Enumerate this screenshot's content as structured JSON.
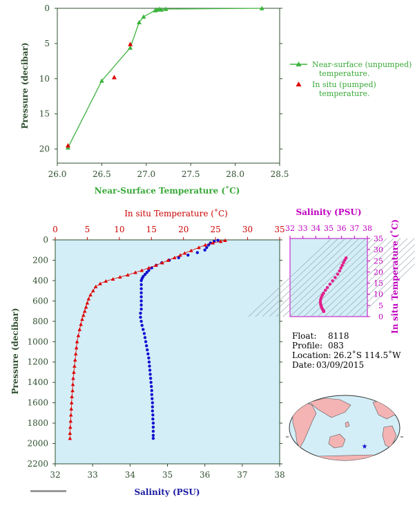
{
  "chart_data": [
    {
      "type": "line",
      "xlabel": "Near-Surface Temperature (˚C)",
      "ylabel": "Pressure (decibar)",
      "xlim": [
        26.0,
        28.5
      ],
      "ylim": [
        0,
        22
      ],
      "x_ticks": [
        "26.0",
        "26.5",
        "27.0",
        "27.5",
        "28.0",
        "28.5"
      ],
      "y_ticks": [
        "0",
        "5",
        "10",
        "15",
        "20"
      ],
      "legend": {
        "position": "right",
        "entries": [
          "Near-surface (unpumped) temperature.",
          "In situ (pumped) temperature."
        ]
      },
      "series": [
        {
          "name": "Near-surface (unpumped) temperature.",
          "color": "#3cb43c",
          "marker": "triangle",
          "points": [
            [
              28.3,
              0.0
            ],
            [
              27.22,
              0.1
            ],
            [
              27.17,
              0.2
            ],
            [
              27.15,
              0.1
            ],
            [
              27.12,
              0.2
            ],
            [
              27.1,
              0.3
            ],
            [
              26.97,
              1.2
            ],
            [
              26.92,
              2.0
            ],
            [
              26.82,
              5.6
            ],
            [
              26.5,
              10.3
            ],
            [
              26.12,
              19.8
            ]
          ]
        },
        {
          "name": "In situ (pumped) temperature.",
          "color": "#dd0000",
          "marker": "triangle",
          "points": [
            [
              26.82,
              5.1
            ],
            [
              26.64,
              9.8
            ],
            [
              26.12,
              19.5
            ]
          ]
        }
      ]
    },
    {
      "type": "scatter",
      "ylabel": "Pressure (decibar)",
      "top_xlabel": "In situ Temperature (˚C)",
      "bottom_xlabel": "Salinity (PSU)",
      "temperature_xlim": [
        0,
        35
      ],
      "salinity_xlim": [
        32,
        38
      ],
      "ylim": [
        0,
        2200
      ],
      "y_reversed": true,
      "temperature_ticks": [
        "0",
        "5",
        "10",
        "15",
        "20",
        "25",
        "30",
        "35"
      ],
      "salinity_ticks": [
        "32",
        "33",
        "34",
        "35",
        "36",
        "37",
        "38"
      ],
      "y_ticks": [
        "0",
        "200",
        "400",
        "600",
        "800",
        "1000",
        "1200",
        "1400",
        "1600",
        "1800",
        "2000",
        "2200"
      ],
      "background": "#d4eef8",
      "series": [
        {
          "name": "In situ Temperature (˚C)",
          "color": "#dd0000",
          "marker": "triangle",
          "points": [
            [
              26.5,
              5
            ],
            [
              25.8,
              15
            ],
            [
              24.6,
              30
            ],
            [
              23.4,
              50
            ],
            [
              22.4,
              75
            ],
            [
              21.2,
              105
            ],
            [
              20.2,
              130
            ],
            [
              19.5,
              150
            ],
            [
              18.6,
              175
            ],
            [
              17.6,
              200
            ],
            [
              16.7,
              225
            ],
            [
              15.7,
              250
            ],
            [
              14.6,
              275
            ],
            [
              13.5,
              300
            ],
            [
              12.5,
              320
            ],
            [
              11.3,
              345
            ],
            [
              10.1,
              365
            ],
            [
              9.0,
              385
            ],
            [
              7.9,
              405
            ],
            [
              7.0,
              430
            ],
            [
              6.3,
              460
            ],
            [
              5.9,
              500
            ],
            [
              5.5,
              540
            ],
            [
              5.2,
              580
            ],
            [
              5.0,
              620
            ],
            [
              4.8,
              660
            ],
            [
              4.6,
              700
            ],
            [
              4.4,
              740
            ],
            [
              4.2,
              780
            ],
            [
              4.0,
              830
            ],
            [
              3.8,
              880
            ],
            [
              3.6,
              940
            ],
            [
              3.4,
              1000
            ],
            [
              3.3,
              1060
            ],
            [
              3.2,
              1120
            ],
            [
              3.1,
              1180
            ],
            [
              3.0,
              1240
            ],
            [
              2.9,
              1300
            ],
            [
              2.8,
              1360
            ],
            [
              2.75,
              1420
            ],
            [
              2.7,
              1480
            ],
            [
              2.6,
              1540
            ],
            [
              2.55,
              1600
            ],
            [
              2.5,
              1660
            ],
            [
              2.45,
              1720
            ],
            [
              2.4,
              1780
            ],
            [
              2.35,
              1840
            ],
            [
              2.3,
              1900
            ],
            [
              2.3,
              1950
            ]
          ]
        },
        {
          "name": "Salinity (PSU)",
          "color": "#1010d0",
          "marker": "circle",
          "points": [
            [
              36.35,
              5
            ],
            [
              36.25,
              15
            ],
            [
              36.15,
              30
            ],
            [
              36.1,
              50
            ],
            [
              36.05,
              75
            ],
            [
              36.0,
              100
            ],
            [
              35.8,
              125
            ],
            [
              35.55,
              150
            ],
            [
              35.3,
              175
            ],
            [
              35.05,
              200
            ],
            [
              34.85,
              225
            ],
            [
              34.7,
              250
            ],
            [
              34.58,
              275
            ],
            [
              34.5,
              300
            ],
            [
              34.45,
              320
            ],
            [
              34.4,
              340
            ],
            [
              34.35,
              360
            ],
            [
              34.32,
              380
            ],
            [
              34.3,
              400
            ],
            [
              34.3,
              440
            ],
            [
              34.3,
              480
            ],
            [
              34.3,
              520
            ],
            [
              34.3,
              560
            ],
            [
              34.3,
              600
            ],
            [
              34.3,
              640
            ],
            [
              34.3,
              680
            ],
            [
              34.28,
              720
            ],
            [
              34.28,
              760
            ],
            [
              34.3,
              800
            ],
            [
              34.32,
              840
            ],
            [
              34.35,
              880
            ],
            [
              34.38,
              920
            ],
            [
              34.4,
              960
            ],
            [
              34.42,
              1000
            ],
            [
              34.44,
              1040
            ],
            [
              34.46,
              1080
            ],
            [
              34.48,
              1120
            ],
            [
              34.5,
              1160
            ],
            [
              34.51,
              1200
            ],
            [
              34.52,
              1240
            ],
            [
              34.53,
              1280
            ],
            [
              34.54,
              1320
            ],
            [
              34.55,
              1360
            ],
            [
              34.56,
              1400
            ],
            [
              34.57,
              1440
            ],
            [
              34.58,
              1480
            ],
            [
              34.58,
              1520
            ],
            [
              34.59,
              1560
            ],
            [
              34.6,
              1600
            ],
            [
              34.6,
              1640
            ],
            [
              34.6,
              1680
            ],
            [
              34.61,
              1720
            ],
            [
              34.61,
              1760
            ],
            [
              34.62,
              1800
            ],
            [
              34.62,
              1840
            ],
            [
              34.62,
              1880
            ],
            [
              34.62,
              1920
            ],
            [
              34.62,
              1950
            ]
          ]
        }
      ]
    },
    {
      "type": "scatter",
      "title": "Salinity (PSU)",
      "xlabel": "Salinity (PSU)",
      "ylabel": "In situ Temperature (˚C)",
      "xlim": [
        32,
        38
      ],
      "ylim": [
        0,
        35
      ],
      "x_ticks": [
        "32",
        "33",
        "34",
        "35",
        "36",
        "37",
        "38"
      ],
      "y_ticks": [
        "0",
        "5",
        "10",
        "15",
        "20",
        "25",
        "30",
        "35"
      ],
      "background": "#d4eef8",
      "color": "#e0208a",
      "points": [
        [
          34.62,
          2.3
        ],
        [
          34.6,
          2.6
        ],
        [
          34.56,
          3.0
        ],
        [
          34.5,
          3.5
        ],
        [
          34.45,
          4.2
        ],
        [
          34.4,
          5.0
        ],
        [
          34.38,
          5.6
        ],
        [
          34.35,
          6.5
        ],
        [
          34.37,
          7.5
        ],
        [
          34.42,
          8.5
        ],
        [
          34.5,
          9.5
        ],
        [
          34.6,
          10.5
        ],
        [
          34.75,
          11.8
        ],
        [
          34.9,
          13.0
        ],
        [
          35.1,
          14.5
        ],
        [
          35.3,
          16.0
        ],
        [
          35.5,
          17.5
        ],
        [
          35.7,
          19.0
        ],
        [
          35.85,
          20.5
        ],
        [
          35.95,
          21.8
        ],
        [
          36.05,
          23.0
        ],
        [
          36.15,
          24.2
        ],
        [
          36.25,
          25.3
        ],
        [
          36.35,
          26.3
        ]
      ]
    }
  ],
  "info": {
    "float_label": "Float:",
    "float_value": "8118",
    "profile_label": "Profile:",
    "profile_value": "083",
    "location_label": "Location:",
    "location_value": "26.2˚S  114.5˚W",
    "date_label": "Date:",
    "date_value": "03/09/2015"
  },
  "colors": {
    "green_line": "#3cb43c",
    "green_text": "#38a838",
    "red": "#dd0000",
    "blue": "#1010d0",
    "magenta": "#c000c0",
    "plot_bg": "#d4eef8",
    "land": "#f4b4b4",
    "ocean": "#d4eef8"
  }
}
